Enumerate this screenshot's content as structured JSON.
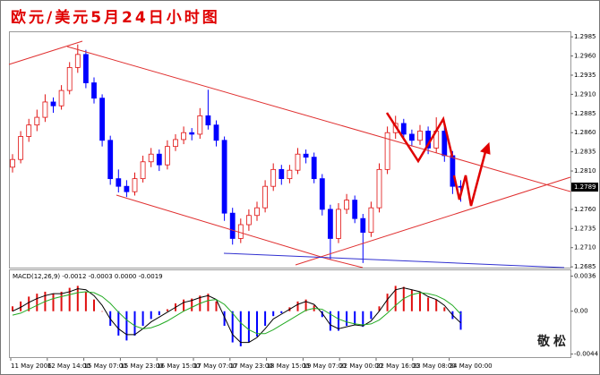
{
  "chart_data": {
    "type": "candlestick",
    "title": "欧元/美元5月24日小时图",
    "watermark": "敬松",
    "up_color": "#e01010",
    "down_color": "#0000ff",
    "ylim": [
      1.2684,
      1.2991
    ],
    "yticks": [
      1.2985,
      {
        "value": 1.296,
        "label": "1.2960"
      },
      1.2935,
      {
        "value": 1.291,
        "label": "1.2910"
      },
      1.2885,
      {
        "value": 1.286,
        "label": "1.2860"
      },
      1.2835,
      {
        "value": 1.281,
        "label": "1.2810"
      },
      {
        "value": 1.276,
        "label": "1.2760"
      },
      1.2735,
      {
        "value": 1.271,
        "label": "1.2710"
      },
      1.2685
    ],
    "current_price": 1.2789,
    "x_labels": [
      "11 May 2006",
      "12 May 14:00",
      "15 May 07:00",
      "15 May 23:00",
      "16 May 15:00",
      "17 May 07:00",
      "17 May 23:00",
      "18 May 15:00",
      "19 May 07:00",
      "22 May 00:00",
      "22 May 16:00",
      "23 May 08:00",
      "24 May 00:00"
    ],
    "ohlc": [
      [
        1.2815,
        1.2832,
        1.2808,
        1.2825
      ],
      [
        1.2825,
        1.2862,
        1.282,
        1.2855
      ],
      [
        1.2855,
        1.2878,
        1.2848,
        1.287
      ],
      [
        1.287,
        1.289,
        1.2862,
        1.288
      ],
      [
        1.288,
        1.291,
        1.2874,
        1.29
      ],
      [
        1.29,
        1.2906,
        1.2886,
        1.2895
      ],
      [
        1.2895,
        1.2922,
        1.289,
        1.2915
      ],
      [
        1.2915,
        1.2952,
        1.291,
        1.2945
      ],
      [
        1.2945,
        1.2975,
        1.2938,
        1.2962
      ],
      [
        1.2962,
        1.2968,
        1.2918,
        1.2925
      ],
      [
        1.2925,
        1.2932,
        1.2898,
        1.2905
      ],
      [
        1.2905,
        1.291,
        1.2842,
        1.285
      ],
      [
        1.285,
        1.2856,
        1.2792,
        1.28
      ],
      [
        1.28,
        1.2812,
        1.2782,
        1.279
      ],
      [
        1.279,
        1.2798,
        1.2776,
        1.2783
      ],
      [
        1.2783,
        1.2808,
        1.2778,
        1.28
      ],
      [
        1.28,
        1.283,
        1.2795,
        1.2822
      ],
      [
        1.2822,
        1.284,
        1.2815,
        1.2832
      ],
      [
        1.2832,
        1.2838,
        1.281,
        1.2818
      ],
      [
        1.2818,
        1.285,
        1.2812,
        1.2842
      ],
      [
        1.2842,
        1.2858,
        1.2836,
        1.2851
      ],
      [
        1.2851,
        1.2868,
        1.2845,
        1.286
      ],
      [
        1.286,
        1.2866,
        1.285,
        1.2858
      ],
      [
        1.2858,
        1.2892,
        1.2852,
        1.2882
      ],
      [
        1.2882,
        1.2916,
        1.2864,
        1.287
      ],
      [
        1.287,
        1.2876,
        1.2842,
        1.285
      ],
      [
        1.285,
        1.2855,
        1.2745,
        1.2755
      ],
      [
        1.2755,
        1.2762,
        1.2714,
        1.2722
      ],
      [
        1.2722,
        1.2748,
        1.2716,
        1.274
      ],
      [
        1.274,
        1.276,
        1.2732,
        1.2752
      ],
      [
        1.2752,
        1.277,
        1.2745,
        1.2762
      ],
      [
        1.2762,
        1.2798,
        1.2756,
        1.279
      ],
      [
        1.279,
        1.282,
        1.2784,
        1.2812
      ],
      [
        1.2812,
        1.2818,
        1.2792,
        1.28
      ],
      [
        1.28,
        1.2818,
        1.2794,
        1.2811
      ],
      [
        1.2811,
        1.284,
        1.2806,
        1.2832
      ],
      [
        1.2832,
        1.2838,
        1.282,
        1.2828
      ],
      [
        1.2828,
        1.2834,
        1.2794,
        1.28
      ],
      [
        1.28,
        1.2806,
        1.2752,
        1.276
      ],
      [
        1.276,
        1.2766,
        1.2695,
        1.2722
      ],
      [
        1.2722,
        1.2768,
        1.2716,
        1.276
      ],
      [
        1.276,
        1.278,
        1.2754,
        1.2772
      ],
      [
        1.2772,
        1.2778,
        1.2742,
        1.2748
      ],
      [
        1.2748,
        1.2754,
        1.269,
        1.273
      ],
      [
        1.273,
        1.277,
        1.2724,
        1.2762
      ],
      [
        1.2762,
        1.282,
        1.2756,
        1.2812
      ],
      [
        1.2812,
        1.2868,
        1.2806,
        1.286
      ],
      [
        1.286,
        1.2882,
        1.2852,
        1.2872
      ],
      [
        1.2872,
        1.2878,
        1.285,
        1.2858
      ],
      [
        1.2858,
        1.2864,
        1.2842,
        1.285
      ],
      [
        1.285,
        1.287,
        1.2844,
        1.2862
      ],
      [
        1.2862,
        1.2868,
        1.2832,
        1.284
      ],
      [
        1.284,
        1.288,
        1.2834,
        1.2862
      ],
      [
        1.2862,
        1.2868,
        1.2822,
        1.283
      ],
      [
        1.283,
        1.2836,
        1.278,
        1.279
      ],
      [
        1.279,
        1.2798,
        1.277,
        1.2789
      ]
    ],
    "macd": {
      "label": "MACD(12,26,9) -0.0012 -0.0003 0.0000 -0.0019",
      "ylim": [
        -0.0048,
        0.0042
      ],
      "yticks": [
        0.0036,
        {
          "value": 0,
          "label": "0.00"
        },
        -0.0044
      ],
      "hist_pos_color": "#e01010",
      "hist_neg_color": "#0000ff",
      "main_color": "#000000",
      "signal_color": "#22aa22",
      "histogram": [
        0.0005,
        0.001,
        0.0015,
        0.0018,
        0.002,
        0.0018,
        0.002,
        0.0024,
        0.0026,
        0.002,
        0.0012,
        0,
        -0.0015,
        -0.0025,
        -0.003,
        -0.0025,
        -0.0015,
        -0.0008,
        -0.0004,
        0.0002,
        0.0008,
        0.0012,
        0.0013,
        0.0016,
        0.0018,
        0.001,
        -0.0015,
        -0.0032,
        -0.0036,
        -0.0032,
        -0.0026,
        -0.0015,
        -0.0005,
        -0.0002,
        0.0004,
        0.001,
        0.0012,
        0.0006,
        -0.0006,
        -0.002,
        -0.002,
        -0.0015,
        -0.0014,
        -0.0016,
        -0.0008,
        0.0005,
        0.0018,
        0.0026,
        0.0025,
        0.0022,
        0.002,
        0.0014,
        0.0012,
        0.0004,
        -0.0008,
        -0.0019
      ],
      "main": [
        0,
        0.0004,
        0.0009,
        0.0013,
        0.0016,
        0.0018,
        0.0018,
        0.002,
        0.0023,
        0.0022,
        0.0016,
        0.0006,
        -0.0008,
        -0.0018,
        -0.0024,
        -0.0024,
        -0.0018,
        -0.0011,
        -0.0006,
        -0.0001,
        0.0004,
        0.0009,
        0.0011,
        0.0014,
        0.0016,
        0.0012,
        -0.0006,
        -0.0024,
        -0.0032,
        -0.0032,
        -0.0027,
        -0.0018,
        -0.0008,
        -0.0003,
        0.0002,
        0.0007,
        0.001,
        0.0007,
        -0.0002,
        -0.0014,
        -0.0018,
        -0.0016,
        -0.0014,
        -0.0015,
        -0.001,
        0,
        0.0012,
        0.0022,
        0.0024,
        0.0022,
        0.002,
        0.0015,
        0.0012,
        0.0006,
        -0.0004,
        -0.0012
      ],
      "signal": [
        -0.0004,
        -0.0002,
        0.0002,
        0.0006,
        0.001,
        0.0013,
        0.0015,
        0.0017,
        0.0019,
        0.002,
        0.0019,
        0.0015,
        0.0008,
        -0.0001,
        -0.0009,
        -0.0015,
        -0.0018,
        -0.0017,
        -0.0014,
        -0.001,
        -0.0005,
        0,
        0.0004,
        0.0008,
        0.0011,
        0.0012,
        0.0007,
        -0.0002,
        -0.0012,
        -0.0019,
        -0.0023,
        -0.0023,
        -0.0019,
        -0.0014,
        -0.0009,
        -0.0004,
        0.0001,
        0.0003,
        0.0002,
        -0.0003,
        -0.0008,
        -0.0011,
        -0.0013,
        -0.0014,
        -0.0013,
        -0.0009,
        -0.0002,
        0.0006,
        0.0013,
        0.0017,
        0.0019,
        0.0018,
        0.0016,
        0.0012,
        0.0006,
        -0.0003
      ]
    }
  }
}
